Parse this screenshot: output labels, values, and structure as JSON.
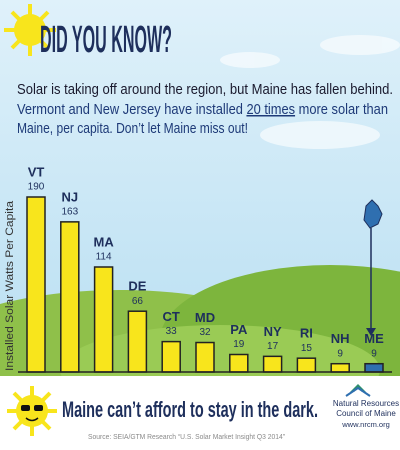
{
  "chart_data": {
    "type": "bar",
    "title": "DID YOU KNOW?",
    "intro": "Solar is taking off around the region, but Maine has fallen behind.",
    "body": [
      "Vermont and New Jersey have installed ",
      "20 times",
      " more solar than",
      "Maine, per capita. Don’t let Maine miss out!"
    ],
    "y_label": "Installed Solar Watts Per Capita",
    "categories": [
      "VT",
      "NJ",
      "MA",
      "DE",
      "CT",
      "MD",
      "PA",
      "NY",
      "RI",
      "NH",
      "ME"
    ],
    "values": [
      190,
      163,
      114,
      66,
      33,
      32,
      19,
      17,
      15,
      9,
      9
    ],
    "colors": [
      "#f8e51c",
      "#f8e51c",
      "#f8e51c",
      "#f8e51c",
      "#f8e51c",
      "#f8e51c",
      "#f8e51c",
      "#f8e51c",
      "#f8e51c",
      "#f8e51c",
      "#2f6fb0"
    ]
  },
  "footer": {
    "tagline": "Maine can’t afford to stay in the dark.",
    "source": "Source: SEIA/GTM Research “U.S. Solar Market Insight Q3 2014”",
    "org": [
      "Natural Resources",
      "Council of Maine",
      "www.nrcm.org"
    ]
  }
}
